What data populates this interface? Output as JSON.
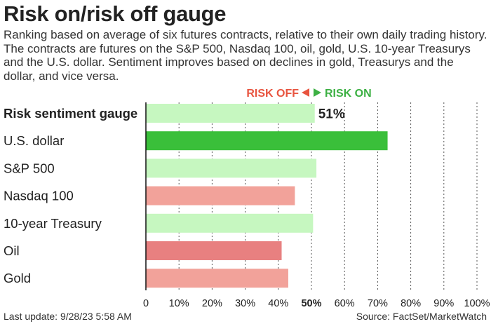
{
  "title": "Risk on/risk off gauge",
  "subtitle": "Ranking based on average of six futures contracts, relative to their own daily trading history. The contracts are futures on the S&P 500, Nasdaq 100, oil, gold, U.S. 10-year Treasurys and the U.S. dollar. Sentiment improves based on declines in gold, Treasurys and the dollar, and vice versa.",
  "risk_off_label": "RISK OFF",
  "risk_on_label": "RISK ON",
  "colors": {
    "risk_off_text": "#e8543f",
    "risk_on_text": "#3cb043",
    "strong_on": "#3abf3a",
    "light_on": "#c6f7c0",
    "light_off": "#f2a29a",
    "strong_off": "#e88080",
    "grid": "#555555",
    "axis": "#111111"
  },
  "chart_data": {
    "type": "bar",
    "orientation": "horizontal",
    "categories": [
      "Risk sentiment gauge",
      "U.S. dollar",
      "S&P 500",
      "Nasdaq 100",
      "10-year Treasury",
      "Oil",
      "Gold"
    ],
    "values": [
      51,
      73,
      51.5,
      45,
      50.5,
      41,
      43
    ],
    "value_label": "51%",
    "bar_colors": [
      "light_on",
      "strong_on",
      "light_on",
      "light_off",
      "light_on",
      "strong_off",
      "light_off"
    ],
    "bold_categories": [
      "Risk sentiment gauge"
    ],
    "xlim": [
      0,
      100
    ],
    "xticks": [
      "0",
      "10%",
      "20%",
      "30%",
      "40%",
      "50%",
      "60%",
      "70%",
      "80%",
      "90%",
      "100%"
    ],
    "grid": true
  },
  "footer": {
    "last_update": "Last update: 9/28/23 5:58 AM",
    "source": "Source: FactSet/MarketWatch"
  }
}
